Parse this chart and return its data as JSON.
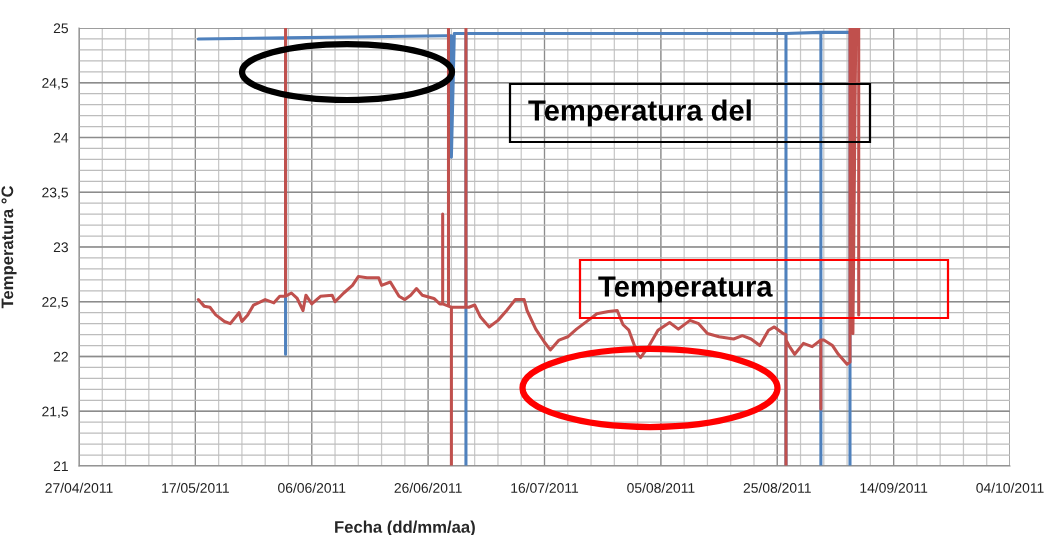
{
  "chart_data": {
    "type": "line",
    "xlabel": "Fecha (dd/mm/aa)",
    "ylabel": "Temperatura °C",
    "annotations": [
      "Temperatura del",
      "Temperatura"
    ],
    "xlim": [
      "2011-04-27",
      "2011-10-04"
    ],
    "xticks": [
      {
        "value": "2011-04-27",
        "label": "27/04/2011"
      },
      {
        "value": "2011-05-17",
        "label": "17/05/2011"
      },
      {
        "value": "2011-06-06",
        "label": "06/06/2011"
      },
      {
        "value": "2011-06-26",
        "label": "26/06/2011"
      },
      {
        "value": "2011-07-16",
        "label": "16/07/2011"
      },
      {
        "value": "2011-08-05",
        "label": "05/08/2011"
      },
      {
        "value": "2011-08-25",
        "label": "25/08/2011"
      },
      {
        "value": "2011-09-14",
        "label": "14/09/2011"
      },
      {
        "value": "2011-10-04",
        "label": "04/10/2011"
      }
    ],
    "ylim": [
      21,
      25
    ],
    "yticks": [
      21,
      {
        "value": 21.5,
        "label": "21,5"
      },
      22,
      {
        "value": 22.5,
        "label": "22,5"
      },
      23,
      {
        "value": 23.5,
        "label": "23,5"
      },
      24,
      {
        "value": 24.5,
        "label": "24,5"
      },
      25
    ],
    "grid": true,
    "series": [
      {
        "color": "#4f81bd",
        "x": [
          "2011-05-17T12:00",
          "2011-06-01T12:00",
          "2011-06-01T12:00",
          "2011-06-01T12:00",
          "2011-06-16T00:00",
          "2011-06-29T00:00",
          "2011-06-30T00:00",
          "2011-06-30T00:00",
          "2011-06-30T12:00",
          "2011-07-02T12:00",
          "2011-07-02T12:00",
          "2011-07-02T12:00",
          "2011-08-05T00:00",
          "2011-08-26T12:00",
          "2011-08-26T12:00",
          "2011-08-26T12:00",
          "2011-09-01T12:00",
          "2011-09-01T12:00",
          "2011-09-01T12:00",
          "2011-09-06T00:00",
          "2011-09-06T12:00",
          "2011-09-06T12:00"
        ],
        "values": [
          24.9,
          24.91,
          22.02,
          24.91,
          24.92,
          24.93,
          24.93,
          23.82,
          24.95,
          24.95,
          21,
          24.95,
          24.95,
          24.95,
          21,
          24.95,
          24.96,
          21,
          24.96,
          24.96,
          24.96,
          21
        ]
      },
      {
        "color": "#c0504d",
        "x": [
          "2011-05-17T12:00",
          "2011-05-18T12:00",
          "2011-05-19T12:00",
          "2011-05-20T12:00",
          "2011-05-22T00:00",
          "2011-05-23T00:00",
          "2011-05-24T12:00",
          "2011-05-25T00:00",
          "2011-05-26T00:00",
          "2011-05-27T00:00",
          "2011-05-29T00:00",
          "2011-05-30T12:00",
          "2011-05-31T12:00",
          "2011-06-01T12:00",
          "2011-06-01T12:00",
          "2011-06-01T12:00",
          "2011-06-02T12:00",
          "2011-06-03T12:00",
          "2011-06-04T12:00",
          "2011-06-05T00:00",
          "2011-06-06T00:00",
          "2011-06-07T12:00",
          "2011-06-09T12:00",
          "2011-06-10T00:00",
          "2011-06-11T12:00",
          "2011-06-13T00:00",
          "2011-06-14T00:00",
          "2011-06-15T12:00",
          "2011-06-17T12:00",
          "2011-06-18T00:00",
          "2011-06-19T12:00",
          "2011-06-21T00:00",
          "2011-06-22T00:00",
          "2011-06-23T00:00",
          "2011-06-24T00:00",
          "2011-06-25T00:00",
          "2011-06-27T00:00",
          "2011-06-28T00:00",
          "2011-06-28T12:00",
          "2011-06-28T12:00",
          "2011-06-28T12:00",
          "2011-06-29T12:00",
          "2011-06-29T12:00",
          "2011-06-29T12:00",
          "2011-06-30T00:00",
          "2011-06-30T00:00",
          "2011-06-30T00:00",
          "2011-07-02T12:00",
          "2011-07-02T12:00",
          "2011-07-02T12:00",
          "2011-07-03T00:00",
          "2011-07-04T00:00",
          "2011-07-05T00:00",
          "2011-07-06T12:00",
          "2011-07-08T00:00",
          "2011-07-09T12:00",
          "2011-07-11T00:00",
          "2011-07-12T12:00",
          "2011-07-13T00:00",
          "2011-07-14T12:00",
          "2011-07-16T00:00",
          "2011-07-17T00:00",
          "2011-07-18T12:00",
          "2011-07-20T00:00",
          "2011-07-21T12:00",
          "2011-07-23T12:00",
          "2011-07-25T00:00",
          "2011-07-27T00:00",
          "2011-07-28T12:00",
          "2011-07-29T12:00",
          "2011-07-30T12:00",
          "2011-08-01T00:00",
          "2011-08-01T12:00",
          "2011-08-03T00:00",
          "2011-08-04T12:00",
          "2011-08-06T12:00",
          "2011-08-08T00:00",
          "2011-08-10T00:00",
          "2011-08-11T12:00",
          "2011-08-13T00:00",
          "2011-08-15T00:00",
          "2011-08-17T12:00",
          "2011-08-19T00:00",
          "2011-08-20T12:00",
          "2011-08-22T00:00",
          "2011-08-23T12:00",
          "2011-08-24T12:00",
          "2011-08-26T00:00",
          "2011-08-26T12:00",
          "2011-08-26T12:00",
          "2011-08-26T12:00",
          "2011-08-27T00:00",
          "2011-08-28T00:00",
          "2011-08-29T12:00",
          "2011-08-31T00:00",
          "2011-09-01T12:00",
          "2011-09-01T12:00",
          "2011-09-01T12:00",
          "2011-09-02T00:00",
          "2011-09-03T12:00",
          "2011-09-04T12:00",
          "2011-09-06T00:00",
          "2011-09-06T12:00",
          "2011-09-06T12:00",
          "2011-09-07T00:00",
          "2011-09-07T00:00",
          "2011-09-07T12:00",
          "2011-09-08T00:00",
          "2011-09-08T00:00"
        ],
        "values": [
          22.52,
          22.46,
          22.45,
          22.38,
          22.32,
          22.3,
          22.4,
          22.32,
          22.38,
          22.47,
          22.52,
          22.49,
          22.55,
          22.55,
          25,
          22.55,
          22.58,
          22.53,
          22.42,
          22.56,
          22.48,
          22.55,
          22.56,
          22.5,
          22.58,
          22.65,
          22.73,
          22.72,
          22.72,
          22.65,
          22.68,
          22.55,
          22.52,
          22.56,
          22.62,
          22.56,
          22.53,
          22.48,
          22.48,
          23.3,
          22.48,
          22.46,
          25,
          22.46,
          22.45,
          21,
          22.45,
          22.45,
          25,
          22.45,
          22.45,
          22.47,
          22.36,
          22.27,
          22.33,
          22.42,
          22.52,
          22.52,
          22.42,
          22.25,
          22.13,
          22.06,
          22.15,
          22.18,
          22.25,
          22.33,
          22.39,
          22.41,
          22.42,
          22.29,
          22.24,
          22.02,
          21.99,
          22.1,
          22.24,
          22.31,
          22.25,
          22.33,
          22.3,
          22.21,
          22.18,
          22.16,
          22.19,
          22.16,
          22.1,
          22.24,
          22.27,
          22.21,
          22.2,
          21,
          22.15,
          22.1,
          22.02,
          22.12,
          22.09,
          22.15,
          21.52,
          22.15,
          22.15,
          22.1,
          22.02,
          21.93,
          21.95,
          25,
          25,
          22.21,
          25,
          25,
          22.38
        ]
      }
    ]
  }
}
